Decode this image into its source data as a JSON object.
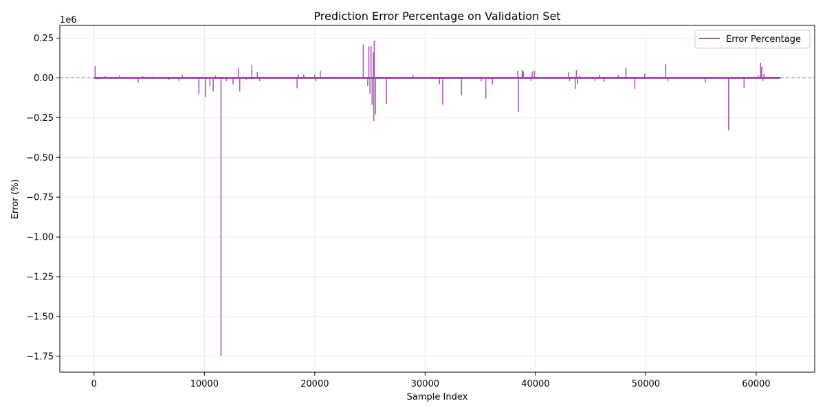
{
  "chart_data": {
    "type": "line",
    "title": "Prediction Error Percentage on Validation Set",
    "xlabel": "Sample Index",
    "ylabel": "Error (%)",
    "y_multiplier_label": "1e6",
    "xlim": [
      -3100,
      65300
    ],
    "ylim": [
      -1.85,
      0.33
    ],
    "x_ticks": [
      0,
      10000,
      20000,
      30000,
      40000,
      50000,
      60000
    ],
    "x_tick_labels": [
      "0",
      "10000",
      "20000",
      "30000",
      "40000",
      "50000",
      "60000"
    ],
    "y_ticks": [
      0.25,
      0.0,
      -0.25,
      -0.5,
      -0.75,
      -1.0,
      -1.25,
      -1.5,
      -1.75
    ],
    "y_tick_labels": [
      "0.25",
      "0.00",
      "−0.25",
      "−0.50",
      "−0.75",
      "−1.00",
      "−1.25",
      "−1.50",
      "−1.75"
    ],
    "grid": true,
    "legend_position": "top-right",
    "reference_line": {
      "y": 0,
      "style": "dashed",
      "color": "#808080"
    },
    "x_max_sample": 62200,
    "series": [
      {
        "name": "Error Percentage",
        "color": "#9b3fa8",
        "spikes": [
          [
            100,
            0.075
          ],
          [
            300,
            -0.01
          ],
          [
            1000,
            0.012
          ],
          [
            2300,
            0.015
          ],
          [
            2600,
            -0.006
          ],
          [
            4000,
            -0.03
          ],
          [
            4400,
            0.012
          ],
          [
            5300,
            -0.008
          ],
          [
            6800,
            -0.015
          ],
          [
            7700,
            -0.02
          ],
          [
            8000,
            0.02
          ],
          [
            9500,
            -0.1
          ],
          [
            10100,
            -0.12
          ],
          [
            10500,
            -0.05
          ],
          [
            10800,
            -0.085
          ],
          [
            11000,
            0.015
          ],
          [
            11500,
            -1.75
          ],
          [
            12000,
            -0.02
          ],
          [
            12600,
            -0.04
          ],
          [
            13100,
            0.06
          ],
          [
            13200,
            -0.085
          ],
          [
            13800,
            -0.012
          ],
          [
            14300,
            0.08
          ],
          [
            14800,
            0.035
          ],
          [
            15000,
            -0.02
          ],
          [
            18400,
            -0.065
          ],
          [
            18500,
            0.025
          ],
          [
            19000,
            0.02
          ],
          [
            20000,
            0.02
          ],
          [
            20100,
            -0.02
          ],
          [
            20500,
            0.045
          ],
          [
            24400,
            0.21
          ],
          [
            24800,
            -0.05
          ],
          [
            24900,
            0.2
          ],
          [
            25000,
            -0.1
          ],
          [
            25100,
            0.2
          ],
          [
            25200,
            -0.17
          ],
          [
            25300,
            0.16
          ],
          [
            25350,
            -0.27
          ],
          [
            25400,
            0.235
          ],
          [
            25500,
            -0.23
          ],
          [
            26500,
            -0.165
          ],
          [
            28900,
            0.02
          ],
          [
            31300,
            -0.04
          ],
          [
            31600,
            -0.17
          ],
          [
            33300,
            -0.11
          ],
          [
            35100,
            -0.02
          ],
          [
            35500,
            -0.13
          ],
          [
            36100,
            -0.04
          ],
          [
            38400,
            0.045
          ],
          [
            38450,
            -0.215
          ],
          [
            38800,
            0.05
          ],
          [
            38900,
            0.04
          ],
          [
            39600,
            -0.02
          ],
          [
            39700,
            0.04
          ],
          [
            39900,
            0.045
          ],
          [
            43000,
            0.035
          ],
          [
            43100,
            -0.02
          ],
          [
            43600,
            -0.07
          ],
          [
            43700,
            0.05
          ],
          [
            43800,
            -0.04
          ],
          [
            44000,
            0.015
          ],
          [
            45400,
            -0.02
          ],
          [
            45800,
            0.02
          ],
          [
            46200,
            -0.025
          ],
          [
            47500,
            0.02
          ],
          [
            48200,
            0.065
          ],
          [
            49000,
            -0.07
          ],
          [
            49900,
            0.025
          ],
          [
            51800,
            0.085
          ],
          [
            52000,
            -0.02
          ],
          [
            55400,
            -0.03
          ],
          [
            57500,
            -0.33
          ],
          [
            58900,
            -0.065
          ],
          [
            60200,
            0.015
          ],
          [
            60400,
            0.095
          ],
          [
            60500,
            0.07
          ],
          [
            60600,
            -0.02
          ],
          [
            60700,
            0.025
          ]
        ]
      }
    ]
  }
}
